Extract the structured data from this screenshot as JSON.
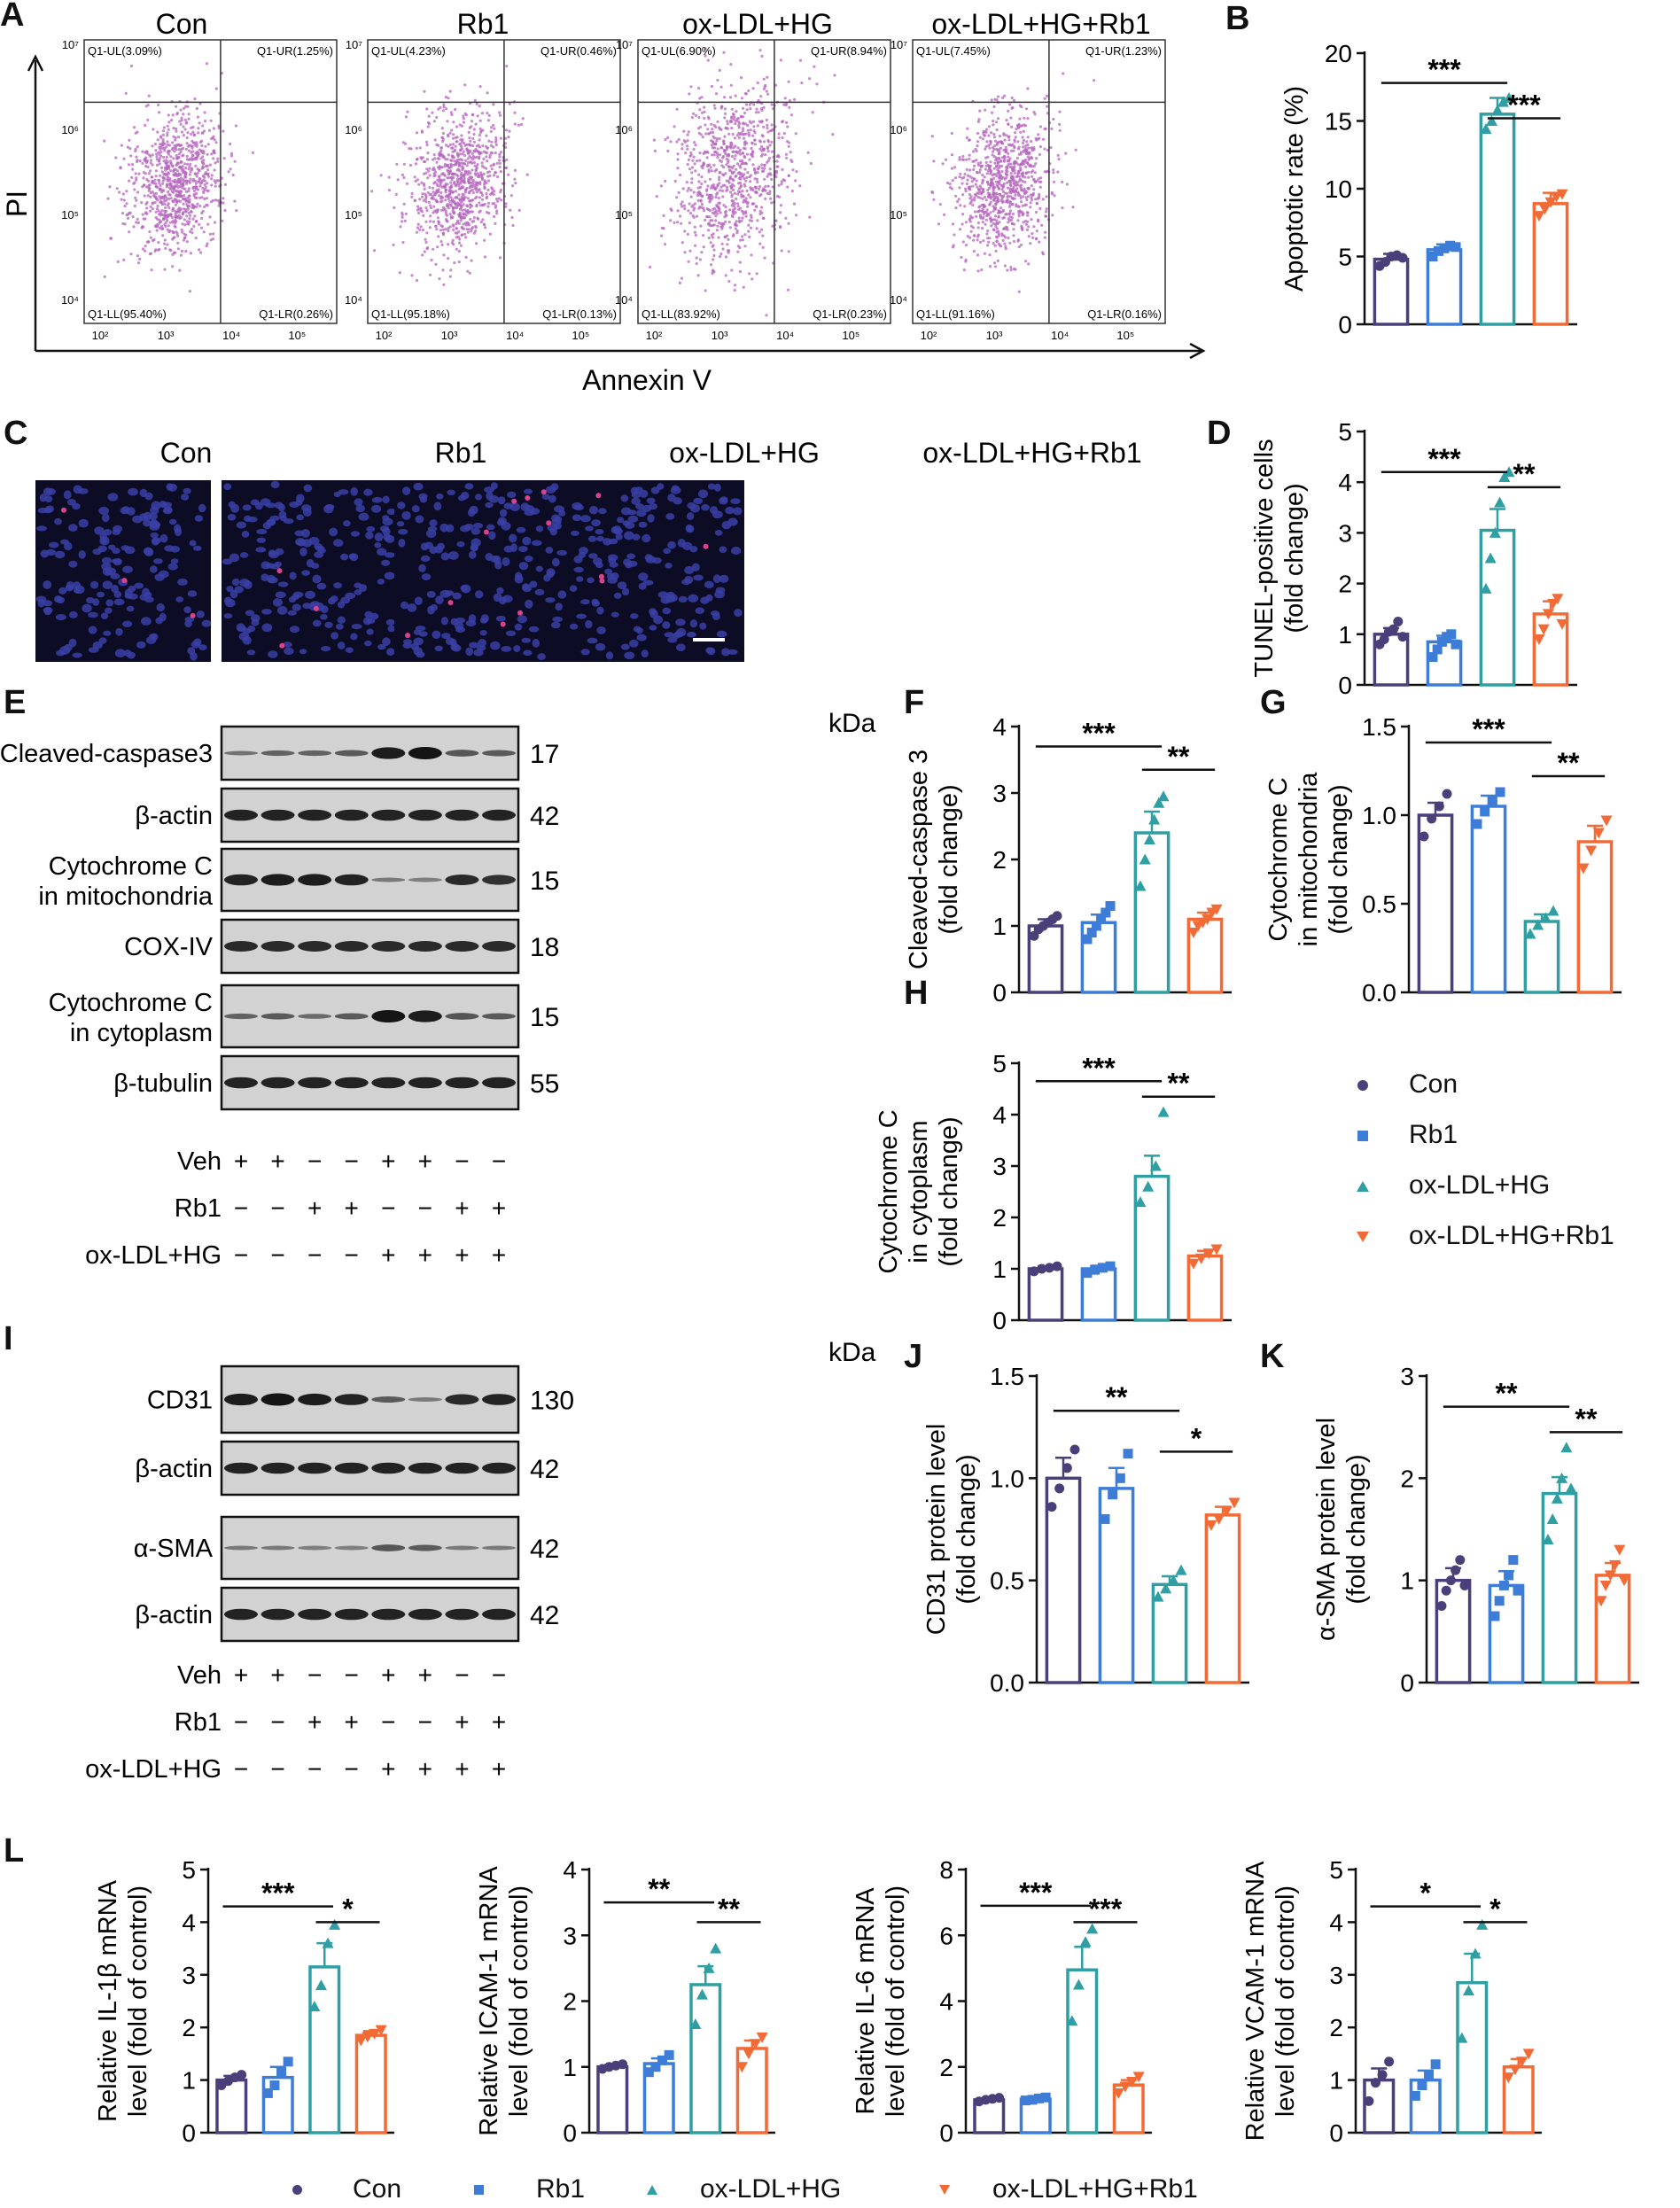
{
  "colors": {
    "con": "#4b3f7a",
    "rb1": "#3d7dd8",
    "oxhg": "#2f9fa3",
    "oxhgrb1": "#f26a35",
    "flow": "#b566bd",
    "axis": "#111111"
  },
  "group_names": [
    "Con",
    "Rb1",
    "ox-LDL+HG",
    "ox-LDL+HG+Rb1"
  ],
  "panel_letters": {
    "A": "A",
    "B": "B",
    "C": "C",
    "D": "D",
    "E": "E",
    "F": "F",
    "G": "G",
    "H": "H",
    "I": "I",
    "J": "J",
    "K": "K",
    "L": "L"
  },
  "flow": {
    "ylabel": "PI",
    "xlabel": "Annexin V",
    "tick_exponents": [
      "10⁷",
      "10⁶",
      "10⁵",
      "10⁴",
      "10²",
      "10³",
      "10⁴",
      "10⁵"
    ],
    "quadrants": [
      {
        "ul": "Q1-UL(3.09%)",
        "ur": "Q1-UR(1.25%)",
        "ll": "Q1-LL(95.40%)",
        "lr": "Q1-LR(0.26%)"
      },
      {
        "ul": "Q1-UL(4.23%)",
        "ur": "Q1-UR(0.46%)",
        "ll": "Q1-LL(95.18%)",
        "lr": "Q1-LR(0.13%)"
      },
      {
        "ul": "Q1-UL(6.90%)",
        "ur": "Q1-UR(8.94%)",
        "ll": "Q1-LL(83.92%)",
        "lr": "Q1-LR(0.23%)"
      },
      {
        "ul": "Q1-UL(7.45%)",
        "ur": "Q1-UR(1.23%)",
        "ll": "Q1-LL(91.16%)",
        "lr": "Q1-LR(0.16%)"
      }
    ]
  },
  "tunel": {
    "scale_bar_label": ""
  },
  "blots_E": {
    "kda": "kDa",
    "rows": [
      {
        "label": "Cleaved-caspase3",
        "kda": "17"
      },
      {
        "label": "β-actin",
        "kda": "42"
      },
      {
        "label": "Cytochrome C",
        "label2": "in mitochondria",
        "kda": "15"
      },
      {
        "label": "COX-IV",
        "kda": "18"
      },
      {
        "label": "Cytochrome C",
        "label2": "in cytoplasm",
        "kda": "15"
      },
      {
        "label": "β-tubulin",
        "kda": "55"
      }
    ],
    "treatments": [
      {
        "name": "Veh",
        "signs": [
          "+",
          "+",
          "−",
          "−",
          "+",
          "+",
          "−",
          "−"
        ]
      },
      {
        "name": "Rb1",
        "signs": [
          "−",
          "−",
          "+",
          "+",
          "−",
          "−",
          "+",
          "+"
        ]
      },
      {
        "name": "ox-LDL+HG",
        "signs": [
          "−",
          "−",
          "−",
          "−",
          "+",
          "+",
          "+",
          "+"
        ]
      }
    ]
  },
  "blots_I": {
    "kda": "kDa",
    "rows": [
      {
        "label": "CD31",
        "kda": "130"
      },
      {
        "label": "β-actin",
        "kda": "42"
      },
      {
        "label": "α-SMA",
        "kda": "42"
      },
      {
        "label": "β-actin",
        "kda": "42"
      }
    ],
    "treatments": [
      {
        "name": "Veh",
        "signs": [
          "+",
          "+",
          "−",
          "−",
          "+",
          "+",
          "−",
          "−"
        ]
      },
      {
        "name": "Rb1",
        "signs": [
          "−",
          "−",
          "+",
          "+",
          "−",
          "−",
          "+",
          "+"
        ]
      },
      {
        "name": "ox-LDL+HG",
        "signs": [
          "−",
          "−",
          "−",
          "−",
          "+",
          "+",
          "+",
          "+"
        ]
      }
    ]
  },
  "legend_right": {
    "items": [
      "Con",
      "Rb1",
      "ox-LDL+HG",
      "ox-LDL+HG+Rb1"
    ]
  },
  "legend_bottom": {
    "items": [
      "Con",
      "Rb1",
      "ox-LDL+HG",
      "ox-LDL+HG+Rb1"
    ]
  },
  "chart_data": [
    {
      "id": "B",
      "type": "bar",
      "categories": [
        "Con",
        "Rb1",
        "ox-LDL+HG",
        "ox-LDL+HG+Rb1"
      ],
      "values": [
        4.8,
        5.5,
        15.5,
        8.9
      ],
      "errors": [
        0.4,
        0.4,
        1.2,
        0.8
      ],
      "ylabel": [
        "Apoptotic rate (%)"
      ],
      "ylim": [
        0,
        20
      ],
      "ticks": [
        0,
        5,
        10,
        15,
        20
      ],
      "sig": [
        {
          "from": 0,
          "to": 2,
          "label": "***",
          "y": 17.8
        },
        {
          "from": 2,
          "to": 3,
          "label": "***",
          "y": 15.2
        }
      ],
      "points": [
        [
          4.3,
          4.6,
          5.0,
          5.1,
          4.9
        ],
        [
          5.0,
          5.4,
          5.6,
          5.8,
          5.7
        ],
        [
          14.4,
          15.0,
          15.8,
          16.4,
          16.7
        ],
        [
          8.0,
          8.5,
          9.0,
          9.4,
          9.6
        ]
      ]
    },
    {
      "id": "D",
      "type": "bar",
      "categories": [
        "Con",
        "Rb1",
        "ox-LDL+HG",
        "ox-LDL+HG+Rb1"
      ],
      "values": [
        1.0,
        0.85,
        3.05,
        1.4
      ],
      "errors": [
        0.12,
        0.12,
        0.42,
        0.25
      ],
      "ylabel": [
        "TUNEL-positive cells",
        "(fold change)"
      ],
      "ylim": [
        0,
        5
      ],
      "ticks": [
        0,
        1,
        2,
        3,
        4,
        5
      ],
      "sig": [
        {
          "from": 0,
          "to": 2,
          "label": "***",
          "y": 4.2
        },
        {
          "from": 2,
          "to": 3,
          "label": "**",
          "y": 3.9
        }
      ],
      "points": [
        [
          0.8,
          0.9,
          1.05,
          1.1,
          1.25,
          0.95
        ],
        [
          0.55,
          0.7,
          0.85,
          0.95,
          1.0,
          0.8
        ],
        [
          1.9,
          2.5,
          3.0,
          3.6,
          4.1,
          4.2
        ],
        [
          0.9,
          1.1,
          1.4,
          1.6,
          1.7,
          1.2
        ]
      ]
    },
    {
      "id": "F",
      "type": "bar",
      "categories": [
        "Con",
        "Rb1",
        "ox-LDL+HG",
        "ox-LDL+HG+Rb1"
      ],
      "values": [
        1.0,
        1.05,
        2.4,
        1.1
      ],
      "errors": [
        0.1,
        0.12,
        0.32,
        0.1
      ],
      "ylabel": [
        "Cleaved-caspase 3",
        "(fold change)"
      ],
      "ylim": [
        0,
        4
      ],
      "ticks": [
        0,
        1,
        2,
        3,
        4
      ],
      "sig": [
        {
          "from": 0,
          "to": 2,
          "label": "***",
          "y": 3.7
        },
        {
          "from": 2,
          "to": 3,
          "label": "**",
          "y": 3.35
        }
      ],
      "points": [
        [
          0.85,
          0.95,
          1.0,
          1.05,
          1.1,
          1.15
        ],
        [
          0.8,
          0.9,
          1.0,
          1.1,
          1.2,
          1.3
        ],
        [
          1.6,
          2.0,
          2.3,
          2.6,
          2.85,
          2.95
        ],
        [
          0.9,
          1.0,
          1.05,
          1.1,
          1.2,
          1.25
        ]
      ]
    },
    {
      "id": "G",
      "type": "bar",
      "categories": [
        "Con",
        "Rb1",
        "ox-LDL+HG",
        "ox-LDL+HG+Rb1"
      ],
      "values": [
        1.0,
        1.05,
        0.4,
        0.85
      ],
      "errors": [
        0.07,
        0.06,
        0.04,
        0.09
      ],
      "ylabel": [
        "Cytochrome C",
        "in mitochondria",
        "(fold change)"
      ],
      "ylim": [
        0,
        1.5
      ],
      "ticks": [
        "0.0",
        "0.5",
        "1.0",
        "1.5"
      ],
      "sig": [
        {
          "from": 0,
          "to": 2,
          "label": "***",
          "y": 1.41
        },
        {
          "from": 2,
          "to": 3,
          "label": "**",
          "y": 1.22
        }
      ],
      "points": [
        [
          0.88,
          0.98,
          1.05,
          1.12
        ],
        [
          0.95,
          1.02,
          1.08,
          1.13
        ],
        [
          0.33,
          0.38,
          0.42,
          0.46
        ],
        [
          0.7,
          0.8,
          0.9,
          0.97
        ]
      ]
    },
    {
      "id": "H",
      "type": "bar",
      "categories": [
        "Con",
        "Rb1",
        "ox-LDL+HG",
        "ox-LDL+HG+Rb1"
      ],
      "values": [
        1.0,
        1.0,
        2.8,
        1.25
      ],
      "errors": [
        0.05,
        0.06,
        0.4,
        0.1
      ],
      "ylabel": [
        "Cytochrome C",
        "in cytoplasm",
        "(fold change)"
      ],
      "ylim": [
        0,
        5
      ],
      "ticks": [
        0,
        1,
        2,
        3,
        4,
        5
      ],
      "sig": [
        {
          "from": 0,
          "to": 2,
          "label": "***",
          "y": 4.65
        },
        {
          "from": 2,
          "to": 3,
          "label": "**",
          "y": 4.35
        }
      ],
      "points": [
        [
          0.95,
          1.0,
          1.02,
          1.05
        ],
        [
          0.92,
          0.98,
          1.02,
          1.05
        ],
        [
          2.3,
          2.6,
          3.0,
          4.05
        ],
        [
          1.1,
          1.2,
          1.3,
          1.38
        ]
      ]
    },
    {
      "id": "J",
      "type": "bar",
      "categories": [
        "Con",
        "Rb1",
        "ox-LDL+HG",
        "ox-LDL+HG+Rb1"
      ],
      "values": [
        1.0,
        0.95,
        0.48,
        0.82
      ],
      "errors": [
        0.1,
        0.1,
        0.04,
        0.04
      ],
      "ylabel": [
        "CD31 protein level",
        "(fold change)"
      ],
      "ylim": [
        0,
        1.5
      ],
      "ticks": [
        "0.0",
        "0.5",
        "1.0",
        "1.5"
      ],
      "sig": [
        {
          "from": 0,
          "to": 2,
          "label": "**",
          "y": 1.33
        },
        {
          "from": 2,
          "to": 3,
          "label": "*",
          "y": 1.13
        }
      ],
      "points": [
        [
          0.86,
          0.95,
          1.05,
          1.14
        ],
        [
          0.8,
          0.92,
          1.0,
          1.12
        ],
        [
          0.42,
          0.46,
          0.5,
          0.55
        ],
        [
          0.77,
          0.8,
          0.84,
          0.88
        ]
      ]
    },
    {
      "id": "K",
      "type": "bar",
      "categories": [
        "Con",
        "Rb1",
        "ox-LDL+HG",
        "ox-LDL+HG+Rb1"
      ],
      "values": [
        1.0,
        0.95,
        1.85,
        1.05
      ],
      "errors": [
        0.12,
        0.14,
        0.16,
        0.12
      ],
      "ylabel": [
        "α-SMA protein level",
        "(fold change)"
      ],
      "ylim": [
        0,
        3
      ],
      "ticks": [
        0,
        1,
        2,
        3
      ],
      "sig": [
        {
          "from": 0,
          "to": 2,
          "label": "**",
          "y": 2.7
        },
        {
          "from": 2,
          "to": 3,
          "label": "**",
          "y": 2.45
        }
      ],
      "points": [
        [
          0.75,
          0.9,
          1.0,
          1.1,
          1.2,
          0.95
        ],
        [
          0.65,
          0.8,
          0.95,
          1.05,
          1.2,
          0.9
        ],
        [
          1.4,
          1.6,
          1.8,
          2.0,
          2.3,
          1.9
        ],
        [
          0.8,
          0.95,
          1.05,
          1.15,
          1.3,
          1.0
        ]
      ]
    },
    {
      "id": "L1",
      "type": "bar",
      "categories": [
        "Con",
        "Rb1",
        "ox-LDL+HG",
        "ox-LDL+HG+Rb1"
      ],
      "values": [
        1.0,
        1.05,
        3.15,
        1.85
      ],
      "errors": [
        0.08,
        0.2,
        0.45,
        0.08
      ],
      "ylabel": [
        "Relative  IL-1β mRNA",
        "level (fold of control)"
      ],
      "ylim": [
        0,
        5
      ],
      "ticks": [
        0,
        1,
        2,
        3,
        4,
        5
      ],
      "sig": [
        {
          "from": 0,
          "to": 2,
          "label": "***",
          "y": 4.3
        },
        {
          "from": 2,
          "to": 3,
          "label": "*",
          "y": 4.0
        }
      ],
      "points": [
        [
          0.9,
          0.98,
          1.05,
          1.1
        ],
        [
          0.75,
          0.9,
          1.15,
          1.35
        ],
        [
          2.4,
          2.8,
          3.6,
          3.95
        ],
        [
          1.75,
          1.82,
          1.88,
          1.95
        ]
      ]
    },
    {
      "id": "L2",
      "type": "bar",
      "categories": [
        "Con",
        "Rb1",
        "ox-LDL+HG",
        "ox-LDL+HG+Rb1"
      ],
      "values": [
        1.0,
        1.05,
        2.25,
        1.28
      ],
      "errors": [
        0.03,
        0.08,
        0.28,
        0.12
      ],
      "ylabel": [
        "Relative ICAM-1 mRNA",
        "level (fold of control)"
      ],
      "ylim": [
        0,
        4
      ],
      "ticks": [
        0,
        1,
        2,
        3,
        4
      ],
      "sig": [
        {
          "from": 0,
          "to": 2,
          "label": "**",
          "y": 3.5
        },
        {
          "from": 2,
          "to": 3,
          "label": "**",
          "y": 3.2
        }
      ],
      "points": [
        [
          0.97,
          1.0,
          1.02,
          1.04
        ],
        [
          0.92,
          1.0,
          1.1,
          1.18
        ],
        [
          1.65,
          2.1,
          2.5,
          2.8
        ],
        [
          1.0,
          1.2,
          1.35,
          1.45
        ]
      ]
    },
    {
      "id": "L3",
      "type": "bar",
      "categories": [
        "Con",
        "Rb1",
        "ox-LDL+HG",
        "ox-LDL+HG+Rb1"
      ],
      "values": [
        1.0,
        1.02,
        4.95,
        1.45
      ],
      "errors": [
        0.04,
        0.04,
        0.7,
        0.15
      ],
      "ylabel": [
        "Relative  IL-6 mRNA",
        "level (fold of control)"
      ],
      "ylim": [
        0,
        8
      ],
      "ticks": [
        0,
        2,
        4,
        6,
        8
      ],
      "sig": [
        {
          "from": 0,
          "to": 2,
          "label": "***",
          "y": 6.9
        },
        {
          "from": 2,
          "to": 3,
          "label": "***",
          "y": 6.4
        }
      ],
      "points": [
        [
          0.95,
          1.0,
          1.03,
          1.06
        ],
        [
          0.98,
          1.0,
          1.04,
          1.07
        ],
        [
          3.4,
          4.5,
          5.8,
          6.2
        ],
        [
          1.2,
          1.4,
          1.55,
          1.7
        ]
      ]
    },
    {
      "id": "L4",
      "type": "bar",
      "categories": [
        "Con",
        "Rb1",
        "ox-LDL+HG",
        "ox-LDL+HG+Rb1"
      ],
      "values": [
        1.0,
        1.0,
        2.85,
        1.25
      ],
      "errors": [
        0.22,
        0.18,
        0.55,
        0.15
      ],
      "ylabel": [
        "Relative VCAM-1 mRNA",
        "level (fold of control)"
      ],
      "ylim": [
        0,
        5
      ],
      "ticks": [
        0,
        1,
        2,
        3,
        4,
        5
      ],
      "sig": [
        {
          "from": 0,
          "to": 2,
          "label": "*",
          "y": 4.3
        },
        {
          "from": 2,
          "to": 3,
          "label": "*",
          "y": 4.0
        }
      ],
      "points": [
        [
          0.6,
          0.95,
          1.1,
          1.35
        ],
        [
          0.7,
          0.9,
          1.1,
          1.3
        ],
        [
          1.8,
          2.7,
          3.4,
          3.95
        ],
        [
          1.05,
          1.2,
          1.35,
          1.5
        ]
      ]
    }
  ]
}
